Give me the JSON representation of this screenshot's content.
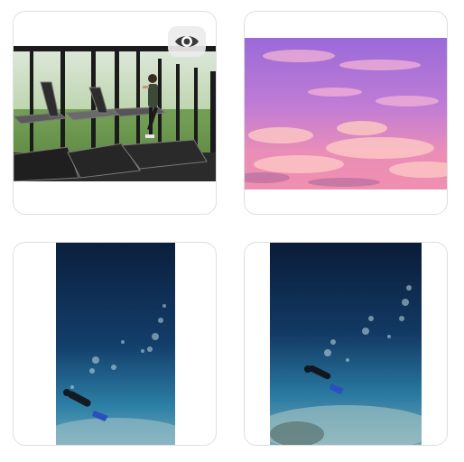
{
  "gallery": {
    "tiles": [
      {
        "subject": "gym-treadmill-photo",
        "has_preview_button": true,
        "preview_icon": "eye-icon"
      },
      {
        "subject": "pink-purple-sky-photo",
        "has_preview_button": false
      },
      {
        "subject": "scuba-diver-underwater-photo",
        "has_preview_button": false
      },
      {
        "subject": "scuba-diver-seafloor-photo",
        "has_preview_button": false
      }
    ]
  },
  "colors": {
    "tile_border": "#dedede",
    "preview_button_bg": "#ececec",
    "preview_icon": "#3a3a3a",
    "sky_top": "#9a6ad8",
    "sky_bottom": "#f08fb0",
    "ocean_top": "#0b1e3d",
    "ocean_bottom": "#2c7fa6"
  }
}
